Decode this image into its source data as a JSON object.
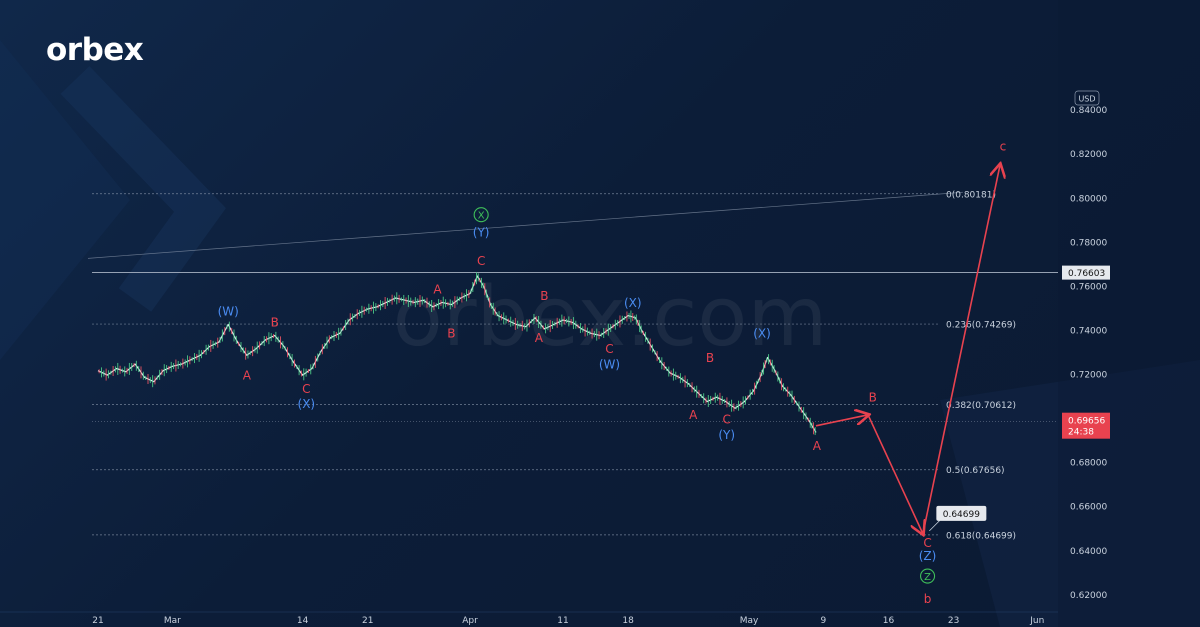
{
  "brand": {
    "logo": "orbex",
    "watermark": "orbex.com"
  },
  "chart_data": {
    "type": "line",
    "currency_label": "USD",
    "ylim": [
      0.612,
      0.848
    ],
    "y_ticks": [
      0.84,
      0.82,
      0.8,
      0.78,
      0.76,
      0.74,
      0.72,
      0.7,
      0.68,
      0.66,
      0.64,
      0.62
    ],
    "x_ticks": [
      {
        "label": "21",
        "day": 0
      },
      {
        "label": "Mar",
        "day": 8
      },
      {
        "label": "14",
        "day": 22
      },
      {
        "label": "21",
        "day": 29
      },
      {
        "label": "Apr",
        "day": 40
      },
      {
        "label": "11",
        "day": 50
      },
      {
        "label": "18",
        "day": 57
      },
      {
        "label": "May",
        "day": 70
      },
      {
        "label": "9",
        "day": 78
      },
      {
        "label": "16",
        "day": 85
      },
      {
        "label": "23",
        "day": 92
      },
      {
        "label": "Jun",
        "day": 101
      }
    ],
    "price_series": [
      [
        0,
        0.7215
      ],
      [
        1,
        0.7195
      ],
      [
        2,
        0.7225
      ],
      [
        3,
        0.721
      ],
      [
        4,
        0.7245
      ],
      [
        5,
        0.7185
      ],
      [
        6,
        0.7165
      ],
      [
        7,
        0.7215
      ],
      [
        8,
        0.7235
      ],
      [
        9,
        0.7245
      ],
      [
        10,
        0.7265
      ],
      [
        11,
        0.7285
      ],
      [
        12,
        0.7325
      ],
      [
        13,
        0.7345
      ],
      [
        14,
        0.7425
      ],
      [
        15,
        0.7345
      ],
      [
        16,
        0.7285
      ],
      [
        17,
        0.7315
      ],
      [
        18,
        0.7355
      ],
      [
        19,
        0.7375
      ],
      [
        20,
        0.7325
      ],
      [
        21,
        0.7255
      ],
      [
        22,
        0.7195
      ],
      [
        23,
        0.7225
      ],
      [
        24,
        0.7305
      ],
      [
        25,
        0.7365
      ],
      [
        26,
        0.7385
      ],
      [
        27,
        0.7445
      ],
      [
        28,
        0.7475
      ],
      [
        29,
        0.7495
      ],
      [
        30,
        0.7505
      ],
      [
        31,
        0.7525
      ],
      [
        32,
        0.7545
      ],
      [
        33,
        0.7535
      ],
      [
        34,
        0.7525
      ],
      [
        35,
        0.7535
      ],
      [
        36,
        0.7505
      ],
      [
        37,
        0.7525
      ],
      [
        38,
        0.7515
      ],
      [
        39,
        0.7545
      ],
      [
        40,
        0.7565
      ],
      [
        40.8,
        0.7645
      ],
      [
        41.5,
        0.7595
      ],
      [
        42.2,
        0.7515
      ],
      [
        43,
        0.7465
      ],
      [
        44,
        0.7445
      ],
      [
        45,
        0.7425
      ],
      [
        46,
        0.7415
      ],
      [
        47,
        0.7455
      ],
      [
        48,
        0.7405
      ],
      [
        49,
        0.7425
      ],
      [
        50,
        0.7445
      ],
      [
        51,
        0.7435
      ],
      [
        52,
        0.7405
      ],
      [
        53,
        0.7385
      ],
      [
        54,
        0.7375
      ],
      [
        55,
        0.7405
      ],
      [
        56,
        0.7435
      ],
      [
        57,
        0.7465
      ],
      [
        57.8,
        0.7455
      ],
      [
        58.5,
        0.7395
      ],
      [
        59.5,
        0.7325
      ],
      [
        60.5,
        0.7255
      ],
      [
        61.5,
        0.7205
      ],
      [
        62.5,
        0.7185
      ],
      [
        63.5,
        0.7155
      ],
      [
        64.5,
        0.7115
      ],
      [
        65.5,
        0.7075
      ],
      [
        66.5,
        0.7095
      ],
      [
        67.5,
        0.7075
      ],
      [
        68.5,
        0.7045
      ],
      [
        69.5,
        0.7075
      ],
      [
        70.5,
        0.7125
      ],
      [
        71.3,
        0.7195
      ],
      [
        72,
        0.7275
      ],
      [
        72.8,
        0.7215
      ],
      [
        73.6,
        0.7145
      ],
      [
        74.5,
        0.7105
      ],
      [
        75.5,
        0.7045
      ],
      [
        76.5,
        0.6985
      ],
      [
        77.2,
        0.6935
      ]
    ],
    "projection": [
      {
        "day": 77.2,
        "value": 0.6965
      },
      {
        "day": 82.8,
        "value": 0.7015
      },
      {
        "day": 88.7,
        "value": 0.6475
      },
      {
        "day": 97.0,
        "value": 0.815
      }
    ],
    "resistance_line": {
      "value": 0.76603,
      "label": "0.76603"
    },
    "trend_line": {
      "from": {
        "day": 0,
        "value": 0.7725
      },
      "to": {
        "day": 93,
        "value": 0.8025
      }
    },
    "fib_levels": [
      {
        "value": 0.80181,
        "label": "0(0.80181)"
      },
      {
        "value": 0.74269,
        "label": "0.236(0.74269)"
      },
      {
        "value": 0.70612,
        "label": "0.382(0.70612)"
      },
      {
        "value": 0.67656,
        "label": "0.5(0.67656)"
      },
      {
        "value": 0.64699,
        "label": "0.618(0.64699)"
      }
    ],
    "current_price": {
      "value": 0.69656,
      "label": "0.69656",
      "countdown": "24:38",
      "dotted_value": 0.6985
    },
    "target_callout": {
      "day": 89.5,
      "value": 0.64699,
      "label": "0.64699"
    },
    "wave_labels": [
      {
        "text": "(W)",
        "day": 14,
        "value": 0.7465,
        "color": "#4a8cf2"
      },
      {
        "text": "A",
        "day": 16,
        "value": 0.7175,
        "color": "#e8424f"
      },
      {
        "text": "B",
        "day": 19,
        "value": 0.7415,
        "color": "#e8424f"
      },
      {
        "text": "C",
        "day": 22.4,
        "value": 0.7115,
        "color": "#e8424f"
      },
      {
        "text": "(X)",
        "day": 22.4,
        "value": 0.7045,
        "color": "#4a8cf2"
      },
      {
        "text": "A",
        "day": 36.5,
        "value": 0.7565,
        "color": "#e8424f"
      },
      {
        "text": "B",
        "day": 38,
        "value": 0.7365,
        "color": "#e8424f"
      },
      {
        "text": "C",
        "day": 41.2,
        "value": 0.7695,
        "color": "#e8424f"
      },
      {
        "text": "(Y)",
        "day": 41.2,
        "value": 0.7825,
        "color": "#4a8cf2"
      },
      {
        "text": "X",
        "day": 41.2,
        "value": 0.7905,
        "color": "#3fbf5a",
        "circled": true
      },
      {
        "text": "B",
        "day": 48,
        "value": 0.7535,
        "color": "#e8424f"
      },
      {
        "text": "A",
        "day": 47.4,
        "value": 0.7345,
        "color": "#e8424f"
      },
      {
        "text": "(X)",
        "day": 57.5,
        "value": 0.7505,
        "color": "#4a8cf2"
      },
      {
        "text": "C",
        "day": 55,
        "value": 0.7295,
        "color": "#e8424f"
      },
      {
        "text": "(W)",
        "day": 55,
        "value": 0.7225,
        "color": "#4a8cf2"
      },
      {
        "text": "B",
        "day": 65.8,
        "value": 0.7255,
        "color": "#e8424f"
      },
      {
        "text": "A",
        "day": 64,
        "value": 0.6995,
        "color": "#e8424f"
      },
      {
        "text": "C",
        "day": 67.6,
        "value": 0.6975,
        "color": "#e8424f"
      },
      {
        "text": "(Y)",
        "day": 67.6,
        "value": 0.6905,
        "color": "#4a8cf2"
      },
      {
        "text": "(X)",
        "day": 71.4,
        "value": 0.7365,
        "color": "#4a8cf2"
      },
      {
        "text": "A",
        "day": 77.3,
        "value": 0.6855,
        "color": "#e8424f"
      },
      {
        "text": "B",
        "day": 83.3,
        "value": 0.7075,
        "color": "#e8424f"
      },
      {
        "text": "C",
        "day": 89.2,
        "value": 0.6415,
        "color": "#e8424f"
      },
      {
        "text": "(Z)",
        "day": 89.2,
        "value": 0.6355,
        "color": "#4a8cf2"
      },
      {
        "text": "Z",
        "day": 89.2,
        "value": 0.6265,
        "color": "#3fbf5a",
        "circled": true
      },
      {
        "text": "b",
        "day": 89.2,
        "value": 0.616,
        "color": "#e8424f"
      },
      {
        "text": "c",
        "day": 97.3,
        "value": 0.8215,
        "color": "#e8424f"
      }
    ],
    "grid": false
  }
}
